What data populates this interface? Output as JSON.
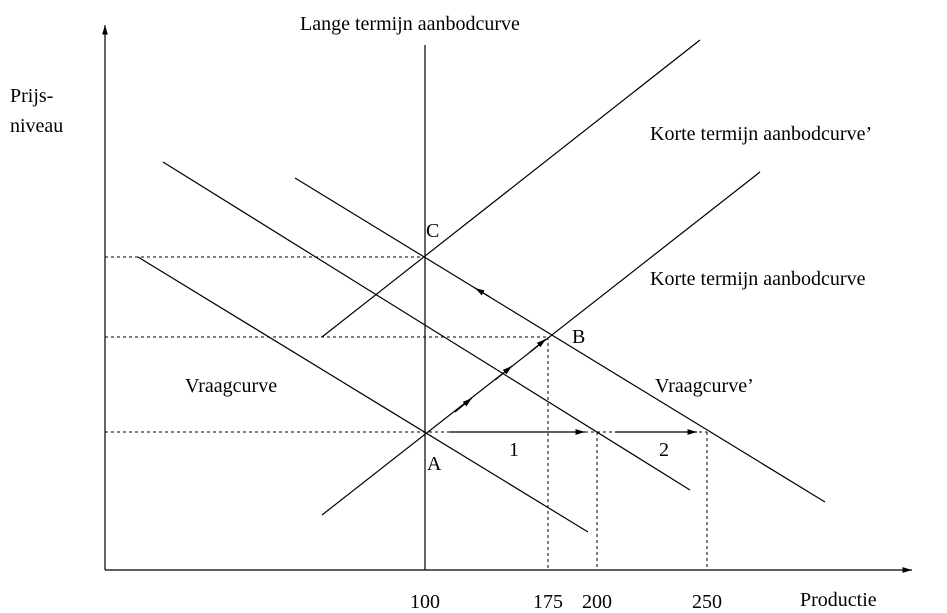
{
  "title": "Lange termijn aanbodcurve",
  "y_axis": {
    "label_lines": [
      "Prijs-",
      "niveau"
    ]
  },
  "x_axis": {
    "label": "Productie",
    "ticks": [
      100,
      175,
      200,
      250
    ]
  },
  "curves": {
    "supply_short": "Korte termijn aanbodcurve",
    "supply_short_shifted": "Korte termijn aanbodcurve’",
    "demand": "Vraagcurve",
    "demand_shifted": "Vraagcurve’"
  },
  "points": [
    "A",
    "B",
    "C"
  ],
  "shifts": [
    "1",
    "2"
  ]
}
